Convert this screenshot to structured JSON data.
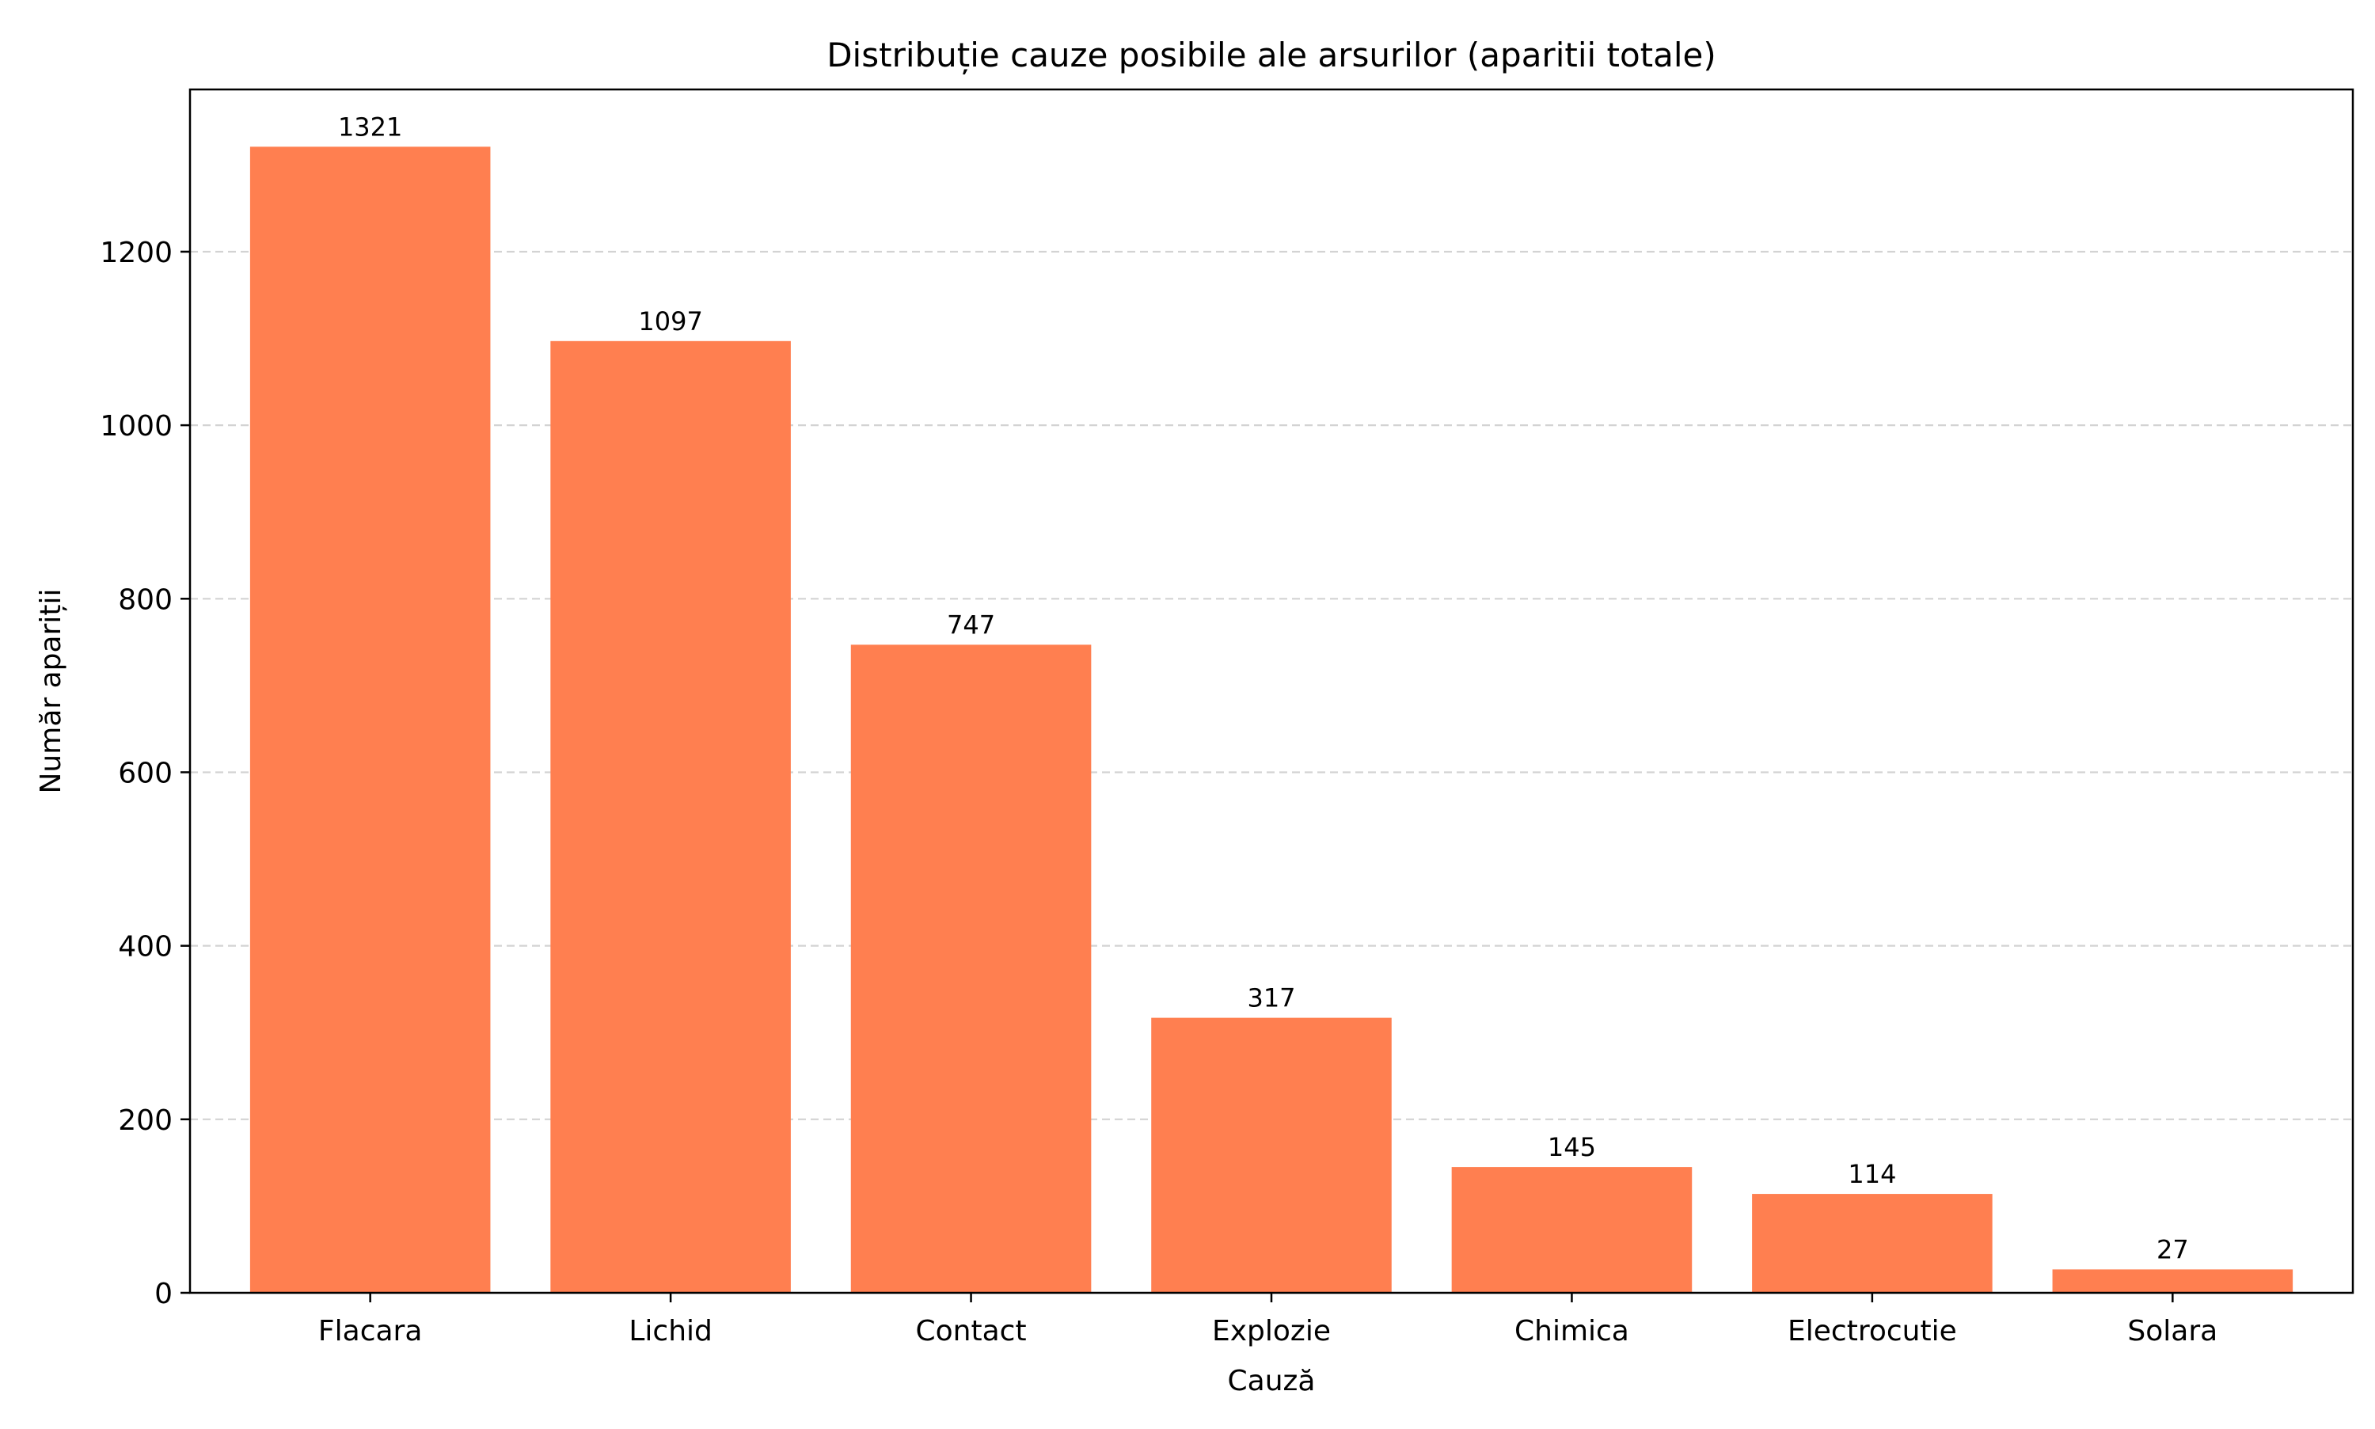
{
  "chart_data": {
    "type": "bar",
    "title": "Distribuție cauze posibile ale arsurilor (aparitii totale)",
    "xlabel": "Cauză",
    "ylabel": "Număr apariții",
    "categories": [
      "Flacara",
      "Lichid",
      "Contact",
      "Explozie",
      "Chimica",
      "Electrocutie",
      "Solara"
    ],
    "values": [
      1321,
      1097,
      747,
      317,
      145,
      114,
      27
    ],
    "value_labels": [
      "1321",
      "1097",
      "747",
      "317",
      "145",
      "114",
      "27"
    ],
    "yticks": [
      0,
      200,
      400,
      600,
      800,
      1000,
      1200
    ],
    "ytick_labels": [
      "0",
      "200",
      "400",
      "600",
      "800",
      "1000",
      "1200"
    ],
    "ylim": [
      0,
      1387
    ],
    "grid": "y-dashed",
    "colors": {
      "bar": "#ff7f50",
      "grid": "#d3d3d3"
    }
  }
}
